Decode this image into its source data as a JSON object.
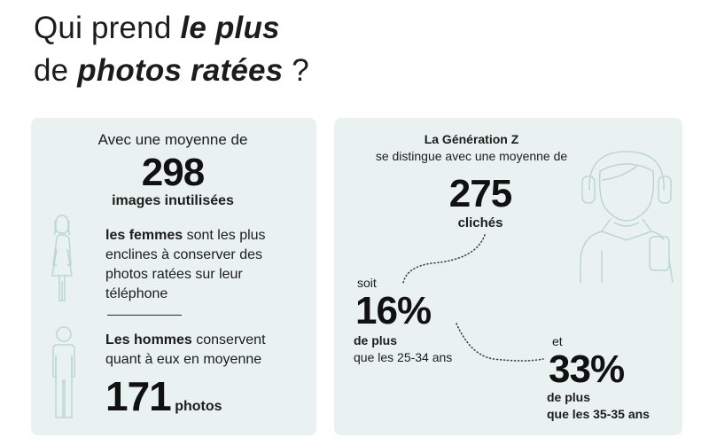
{
  "title": {
    "line1_prefix": "Qui prend ",
    "line1_emphasis": "le plus",
    "line2_prefix": "de ",
    "line2_emphasis": "photos ratées",
    "line2_suffix": " ?"
  },
  "left_card": {
    "intro": "Avec une moyenne de",
    "women_number": "298",
    "women_unit": "images inutilisées",
    "women_bold": "les femmes",
    "women_text": " sont les plus enclines à conserver des photos ratées sur leur téléphone",
    "men_bold": "Les hommes",
    "men_text": " conservent quant à eux en moyenne",
    "men_number": "171",
    "men_unit": "photos"
  },
  "right_card": {
    "gen_title": "La Génération Z",
    "gen_text": "se distingue avec une moyenne de",
    "gen_number": "275",
    "gen_unit": "clichés",
    "soit": "soit",
    "pct1": "16%",
    "pct1_bold": "de plus",
    "pct1_text": "que les 25-34 ans",
    "et": "et",
    "pct2": "33%",
    "pct2_bold_1": "de plus",
    "pct2_bold_2": "que les 35-35 ans"
  },
  "icons": {
    "woman": "woman-figure-icon",
    "man": "man-figure-icon",
    "teen": "teen-with-headphones-icon"
  },
  "colors": {
    "card_background": "#e9f2f0",
    "icon_stroke": "#bcd6d0",
    "text": "#1c1c1c"
  }
}
